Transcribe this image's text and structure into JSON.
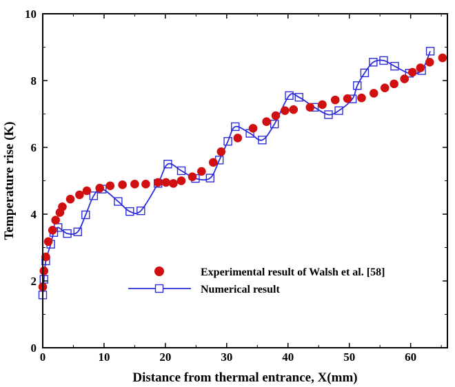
{
  "chart_data": {
    "type": "scatter",
    "xlabel": "Distance from thermal entrance, X(mm)",
    "ylabel": "Temperature rise (K)",
    "xlim": [
      0,
      66
    ],
    "ylim": [
      0,
      10
    ],
    "x_ticks": [
      "0",
      "10",
      "20",
      "30",
      "40",
      "50",
      "60"
    ],
    "y_ticks": [
      "0",
      "2",
      "4",
      "6",
      "8",
      "10"
    ],
    "grid": false,
    "legend_position": "bottom-right",
    "series": [
      {
        "name": "Experimental result of Walsh et al. [58]",
        "marker": "circle-filled",
        "color": "#d01010",
        "points": [
          [
            0.0,
            1.82
          ],
          [
            0.2,
            2.3
          ],
          [
            0.5,
            2.72
          ],
          [
            0.9,
            3.18
          ],
          [
            1.6,
            3.52
          ],
          [
            2.1,
            3.82
          ],
          [
            2.8,
            4.05
          ],
          [
            3.2,
            4.22
          ],
          [
            4.5,
            4.45
          ],
          [
            6.0,
            4.58
          ],
          [
            7.2,
            4.7
          ],
          [
            9.3,
            4.78
          ],
          [
            11.0,
            4.85
          ],
          [
            13.0,
            4.88
          ],
          [
            15.0,
            4.9
          ],
          [
            16.8,
            4.9
          ],
          [
            18.8,
            4.95
          ],
          [
            20.1,
            4.95
          ],
          [
            21.3,
            4.92
          ],
          [
            22.6,
            5.0
          ],
          [
            24.4,
            5.12
          ],
          [
            25.9,
            5.28
          ],
          [
            27.8,
            5.55
          ],
          [
            29.1,
            5.87
          ],
          [
            31.8,
            6.28
          ],
          [
            34.3,
            6.57
          ],
          [
            36.5,
            6.77
          ],
          [
            38.0,
            6.95
          ],
          [
            39.5,
            7.1
          ],
          [
            40.9,
            7.13
          ],
          [
            43.6,
            7.2
          ],
          [
            45.6,
            7.28
          ],
          [
            47.7,
            7.42
          ],
          [
            49.7,
            7.46
          ],
          [
            52.0,
            7.48
          ],
          [
            54.0,
            7.62
          ],
          [
            55.8,
            7.78
          ],
          [
            57.3,
            7.9
          ],
          [
            59.0,
            8.05
          ],
          [
            60.3,
            8.25
          ],
          [
            61.6,
            8.38
          ],
          [
            63.1,
            8.55
          ],
          [
            65.2,
            8.68
          ]
        ]
      },
      {
        "name": "Numerical result",
        "marker": "square-open",
        "color": "#2b2bdc",
        "points": [
          [
            0.0,
            1.58
          ],
          [
            0.2,
            2.05
          ],
          [
            0.5,
            2.6
          ],
          [
            1.3,
            3.1
          ],
          [
            1.8,
            3.45
          ],
          [
            2.5,
            3.6
          ],
          [
            4.0,
            3.42
          ],
          [
            5.7,
            3.47
          ],
          [
            7.0,
            3.98
          ],
          [
            8.3,
            4.55
          ],
          [
            9.7,
            4.75
          ],
          [
            12.3,
            4.38
          ],
          [
            14.2,
            4.08
          ],
          [
            16.0,
            4.1
          ],
          [
            18.8,
            4.92
          ],
          [
            20.4,
            5.5
          ],
          [
            22.6,
            5.3
          ],
          [
            24.9,
            5.07
          ],
          [
            27.3,
            5.08
          ],
          [
            28.8,
            5.62
          ],
          [
            30.2,
            6.18
          ],
          [
            31.4,
            6.62
          ],
          [
            33.8,
            6.42
          ],
          [
            35.8,
            6.22
          ],
          [
            37.8,
            6.7
          ],
          [
            40.2,
            7.55
          ],
          [
            41.8,
            7.5
          ],
          [
            44.3,
            7.2
          ],
          [
            46.6,
            6.98
          ],
          [
            48.3,
            7.1
          ],
          [
            50.5,
            7.45
          ],
          [
            51.3,
            7.85
          ],
          [
            52.5,
            8.23
          ],
          [
            53.9,
            8.55
          ],
          [
            55.6,
            8.6
          ],
          [
            57.4,
            8.43
          ],
          [
            59.8,
            8.22
          ],
          [
            61.8,
            8.3
          ],
          [
            63.2,
            8.88
          ]
        ]
      }
    ]
  }
}
